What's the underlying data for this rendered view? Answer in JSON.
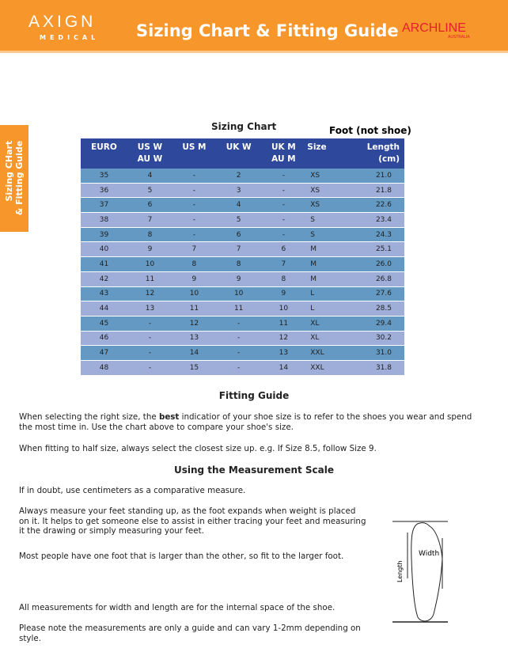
{
  "header": {
    "brand": "AXIGN",
    "brand_sub": "MEDICAL",
    "title": "Sizing Chart & Fitting Guide",
    "partner": "ARCHLINE",
    "partner_sub": "AUSTRALIA",
    "color": "#f7962b"
  },
  "side_tab": {
    "line1": "Sizing CHart",
    "line2": "& Fitting Guide"
  },
  "sizing_chart": {
    "title": "Sizing Chart",
    "note": "Foot (not shoe)",
    "columns": [
      [
        "EURO",
        ""
      ],
      [
        "US W",
        "AU W"
      ],
      [
        "US M",
        ""
      ],
      [
        "UK W",
        ""
      ],
      [
        "UK M",
        "AU M"
      ],
      [
        "Size",
        ""
      ],
      [
        "Length",
        "(cm)"
      ]
    ],
    "rows": [
      [
        "35",
        "4",
        "-",
        "2",
        "-",
        "XS",
        "21.0"
      ],
      [
        "36",
        "5",
        "-",
        "3",
        "-",
        "XS",
        "21.8"
      ],
      [
        "37",
        "6",
        "-",
        "4",
        "-",
        "XS",
        "22.6"
      ],
      [
        "38",
        "7",
        "-",
        "5",
        "-",
        "S",
        "23.4"
      ],
      [
        "39",
        "8",
        "-",
        "6",
        "-",
        "S",
        "24.3"
      ],
      [
        "40",
        "9",
        "7",
        "7",
        "6",
        "M",
        "25.1"
      ],
      [
        "41",
        "10",
        "8",
        "8",
        "7",
        "M",
        "26.0"
      ],
      [
        "42",
        "11",
        "9",
        "9",
        "8",
        "M",
        "26.8"
      ],
      [
        "43",
        "12",
        "10",
        "10",
        "9",
        "L",
        "27.6"
      ],
      [
        "44",
        "13",
        "11",
        "11",
        "10",
        "L",
        "28.5"
      ],
      [
        "45",
        "-",
        "12",
        "-",
        "11",
        "XL",
        "29.4"
      ],
      [
        "46",
        "-",
        "13",
        "-",
        "12",
        "XL",
        "30.2"
      ],
      [
        "47",
        "-",
        "14",
        "-",
        "13",
        "XXL",
        "31.0"
      ],
      [
        "48",
        "-",
        "15",
        "-",
        "14",
        "XXL",
        "31.8"
      ]
    ]
  },
  "fitting": {
    "title": "Fitting Guide",
    "p1_a": "When selecting the right size, the ",
    "p1_b": "best",
    "p1_c": " indicatior of your shoe size is to refer to the shoes you wear and spend the most time in. Use the chart above to compare your shoe's size.",
    "p2": "When fitting to half size, always select the closest size up. e.g. If Size 8.5, follow Size 9."
  },
  "measure": {
    "title": "Using the Measurement Scale",
    "p1": "If in doubt, use centimeters as a comparative measure.",
    "p2": "Always measure your feet standing up, as the foot expands when weight is placed on it. It helps to get someone else to assist in either tracing your feet and measuring it the drawing or simply measuring your feet.",
    "p3": "Most people have one foot that is larger than the other, so fit to the larger foot.",
    "p4": "All measurements for width and length are for the internal space of the shoe.",
    "p5": "Please note the measurements are only a guide and can vary 1-2mm depending on style.",
    "diagram": {
      "length": "Length",
      "width": "Width"
    }
  }
}
